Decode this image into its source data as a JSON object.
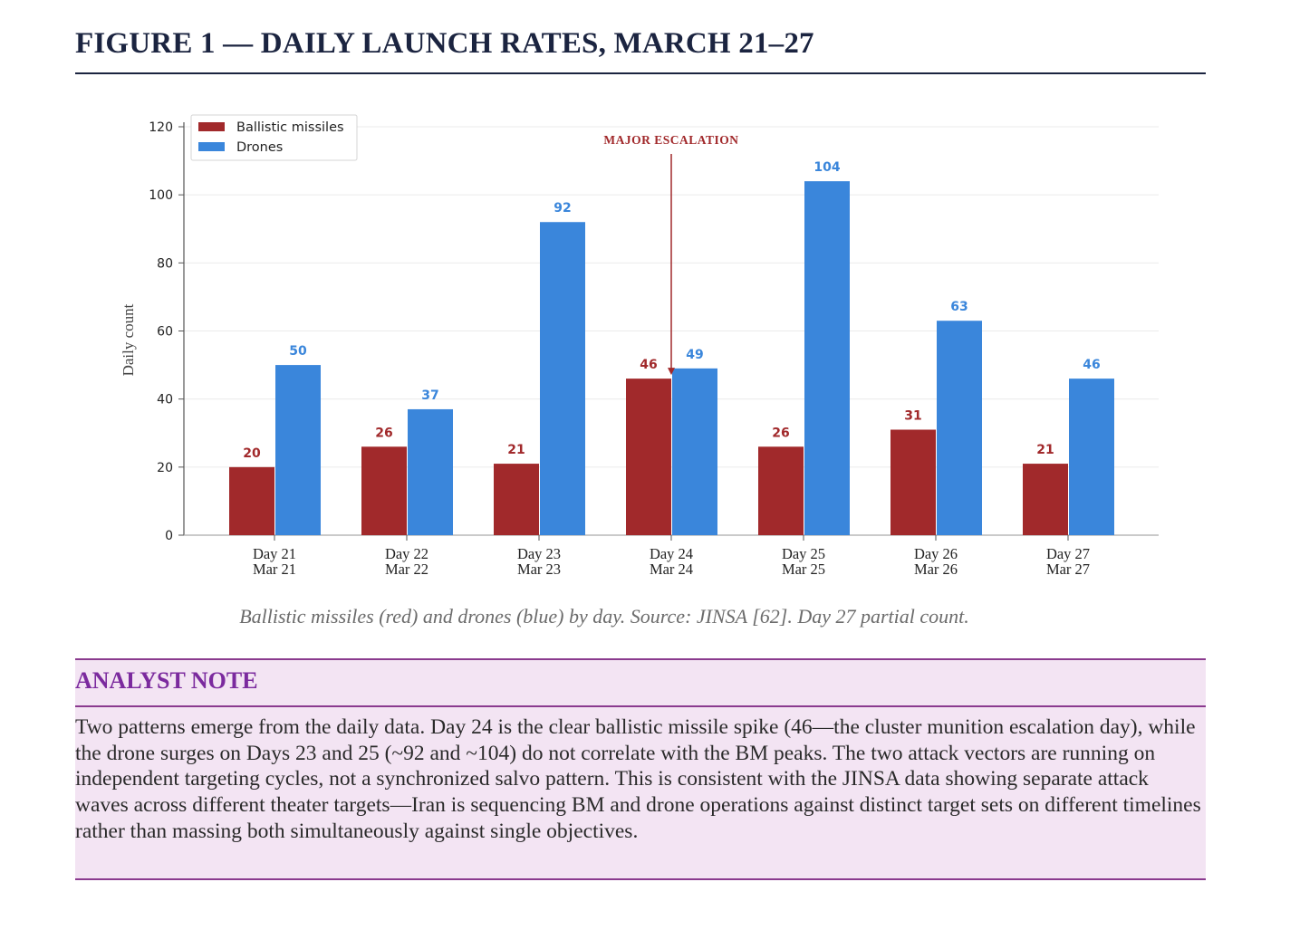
{
  "figure_title": "FIGURE 1 — DAILY LAUNCH RATES, MARCH 21–27",
  "caption": "Ballistic missiles (red) and drones (blue) by day. Source: JINSA [62]. Day 27 partial count.",
  "colors": {
    "ballistic": "#a1292b",
    "drones": "#3a86db",
    "annotation": "#a1292b",
    "title": "#1b2440",
    "note_accent": "#7b2a9e"
  },
  "chart_data": {
    "type": "bar",
    "title": "",
    "xlabel": "",
    "ylabel": "Daily count",
    "ylim": [
      0,
      120
    ],
    "yticks": [
      0,
      20,
      40,
      60,
      80,
      100,
      120
    ],
    "grid": true,
    "legend_position": "top-left",
    "categories": [
      "Day 21\nMar 21",
      "Day 22\nMar 22",
      "Day 23\nMar 23",
      "Day 24\nMar 24",
      "Day 25\nMar 25",
      "Day 26\nMar 26",
      "Day 27\nMar 27"
    ],
    "category_lines": [
      [
        "Day 21",
        "Mar 21"
      ],
      [
        "Day 22",
        "Mar 22"
      ],
      [
        "Day 23",
        "Mar 23"
      ],
      [
        "Day 24",
        "Mar 24"
      ],
      [
        "Day 25",
        "Mar 25"
      ],
      [
        "Day 26",
        "Mar 26"
      ],
      [
        "Day 27",
        "Mar 27"
      ]
    ],
    "series": [
      {
        "name": "Ballistic missiles",
        "values": [
          20,
          26,
          21,
          46,
          26,
          31,
          21
        ]
      },
      {
        "name": "Drones",
        "values": [
          50,
          37,
          92,
          49,
          104,
          63,
          46
        ]
      }
    ],
    "annotations": [
      {
        "text": "MAJOR ESCALATION",
        "category": "Day 24\nMar 24",
        "arrow_to_value": 46
      }
    ]
  },
  "analyst_note": {
    "heading": "ANALYST NOTE",
    "body": "Two patterns emerge from the daily data. Day 24 is the clear ballistic missile spike (46—the cluster munition escalation day), while the drone surges on Days 23 and 25 (~92 and ~104) do not correlate with the BM peaks. The two attack vectors are running on independent targeting cycles, not a synchronized salvo pattern. This is consistent with the JINSA data showing separate attack waves across different theater targets—Iran is sequencing BM and drone operations against distinct target sets on different timelines rather than massing both simultaneously against single objectives."
  }
}
